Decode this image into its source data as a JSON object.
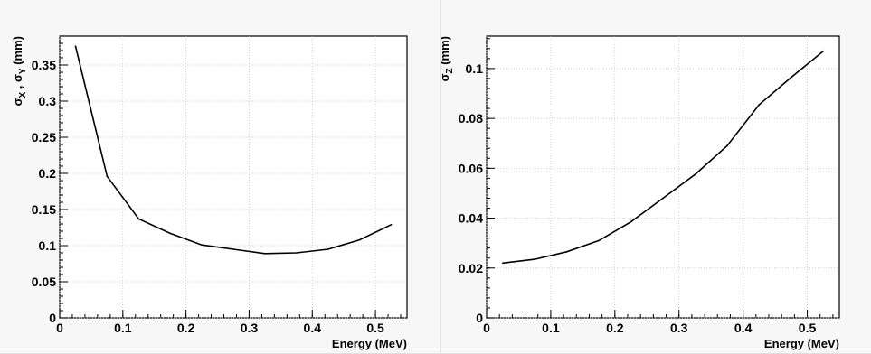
{
  "chart_data": [
    {
      "type": "line",
      "xlabel": "Energy (MeV)",
      "ylabel": "σX , σY (mm)",
      "ylabel_parts": {
        "sym1": "σ",
        "sub1": "X",
        "sep": " , ",
        "sym2": "σ",
        "sub2": "Y",
        "unit": " (mm)"
      },
      "xlim": [
        0,
        0.55
      ],
      "ylim": [
        0,
        0.39
      ],
      "x_ticks": [
        "0",
        "0.1",
        "0.2",
        "0.3",
        "0.4",
        "0.5"
      ],
      "y_ticks": [
        "0",
        "0.05",
        "0.1",
        "0.15",
        "0.2",
        "0.25",
        "0.3",
        "0.35"
      ],
      "grid": true,
      "series": [
        {
          "x": [
            0.025,
            0.075,
            0.125,
            0.175,
            0.225,
            0.275,
            0.325,
            0.375,
            0.425,
            0.475,
            0.525
          ],
          "y": [
            0.376,
            0.196,
            0.137,
            0.117,
            0.101,
            0.095,
            0.089,
            0.09,
            0.095,
            0.108,
            0.129
          ]
        }
      ]
    },
    {
      "type": "line",
      "xlabel": "Energy (MeV)",
      "ylabel": "σZ (mm)",
      "ylabel_parts": {
        "sym1": "σ",
        "sub1": "Z",
        "unit": " (mm)"
      },
      "xlim": [
        0,
        0.55
      ],
      "ylim": [
        0,
        0.113
      ],
      "x_ticks": [
        "0",
        "0.1",
        "0.2",
        "0.3",
        "0.4",
        "0.5"
      ],
      "y_ticks": [
        "0",
        "0.02",
        "0.04",
        "0.06",
        "0.08",
        "0.1"
      ],
      "grid": true,
      "series": [
        {
          "x": [
            0.025,
            0.075,
            0.125,
            0.175,
            0.225,
            0.275,
            0.325,
            0.375,
            0.425,
            0.475,
            0.525
          ],
          "y": [
            0.022,
            0.0235,
            0.0265,
            0.031,
            0.0385,
            0.048,
            0.0575,
            0.069,
            0.0855,
            0.0965,
            0.107
          ]
        }
      ]
    }
  ]
}
